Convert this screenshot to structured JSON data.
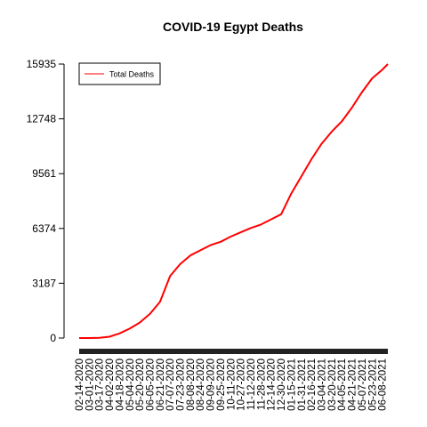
{
  "chart_data": {
    "type": "line",
    "title": "COVID-19 Egypt Deaths",
    "xlabel": "",
    "ylabel": "",
    "ylim": [
      0,
      15935
    ],
    "yticks": [
      0,
      3187,
      6374,
      9561,
      12748,
      15935
    ],
    "xtick_labels": [
      "02-14-2020",
      "03-01-2020",
      "03-17-2020",
      "04-02-2020",
      "04-18-2020",
      "05-04-2020",
      "05-20-2020",
      "06-05-2020",
      "06-21-2020",
      "07-07-2020",
      "07-23-2020",
      "08-08-2020",
      "08-24-2020",
      "09-09-2020",
      "09-25-2020",
      "10-11-2020",
      "10-27-2020",
      "11-12-2020",
      "11-28-2020",
      "12-14-2020",
      "12-30-2020",
      "01-15-2021",
      "01-31-2021",
      "02-16-2021",
      "03-04-2021",
      "03-20-2021",
      "04-05-2021",
      "04-21-2021",
      "05-07-2021",
      "05-23-2021",
      "06-08-2021"
    ],
    "legend": {
      "position": "top-left",
      "entries": [
        "Total Deaths"
      ]
    },
    "grid": false,
    "series": [
      {
        "name": "Total Deaths",
        "color": "#ff0000",
        "x": [
          "02-14-2020",
          "03-01-2020",
          "03-17-2020",
          "04-02-2020",
          "04-18-2020",
          "05-04-2020",
          "05-20-2020",
          "06-05-2020",
          "06-21-2020",
          "07-07-2020",
          "07-23-2020",
          "08-08-2020",
          "08-24-2020",
          "09-09-2020",
          "09-25-2020",
          "10-11-2020",
          "10-27-2020",
          "11-12-2020",
          "11-28-2020",
          "12-14-2020",
          "12-30-2020",
          "01-15-2021",
          "01-31-2021",
          "02-16-2021",
          "03-04-2021",
          "03-20-2021",
          "04-05-2021",
          "04-21-2021",
          "05-07-2021",
          "05-23-2021",
          "06-08-2021",
          "06-17-2021"
        ],
        "values": [
          0,
          0,
          10,
          80,
          270,
          550,
          900,
          1400,
          2100,
          3600,
          4300,
          4800,
          5100,
          5400,
          5600,
          5900,
          6150,
          6400,
          6600,
          6900,
          7200,
          8400,
          9400,
          10400,
          11300,
          12000,
          12600,
          13400,
          14300,
          15100,
          15600,
          15935
        ]
      }
    ]
  }
}
